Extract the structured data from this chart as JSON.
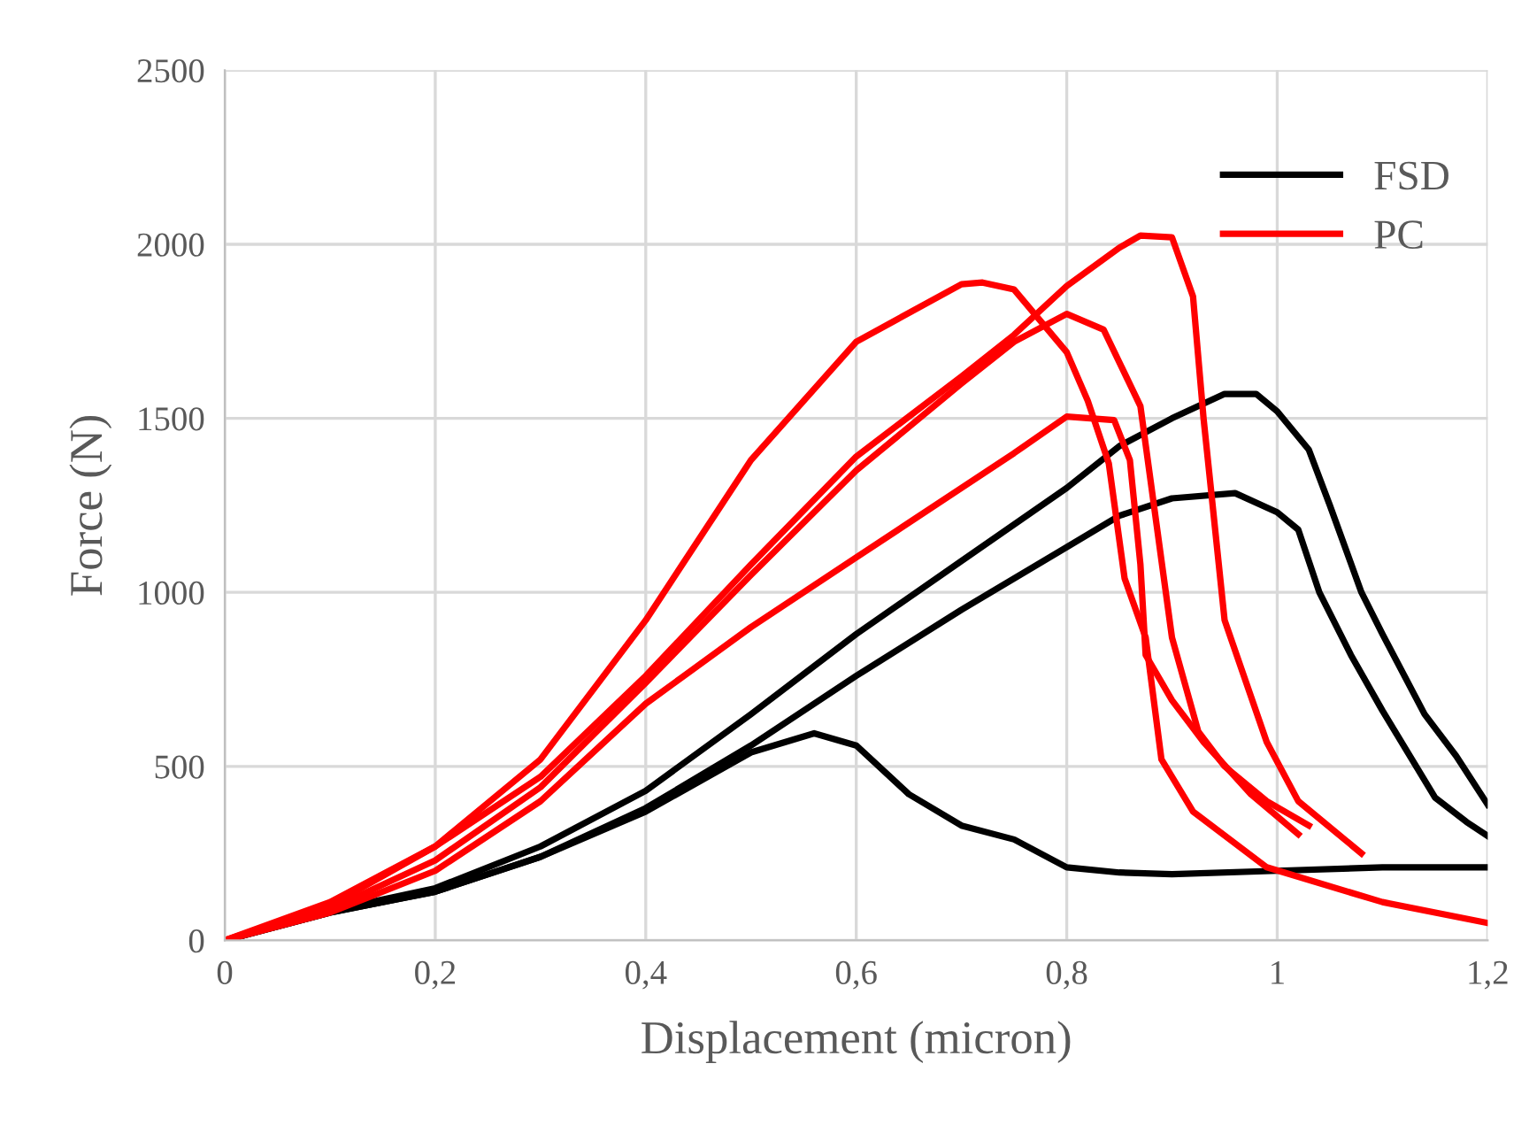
{
  "chart_data": {
    "type": "line",
    "xlabel": "Displacement (micron)",
    "ylabel": "Force (N)",
    "xlim": [
      0,
      1.2
    ],
    "xticks": [
      0,
      {
        "value": 0.2,
        "label": "0,2"
      },
      {
        "value": 0.4,
        "label": "0,4"
      },
      {
        "value": 0.6,
        "label": "0,6"
      },
      {
        "value": 0.8,
        "label": "0,8"
      },
      1,
      {
        "value": 1.2,
        "label": "1,2"
      }
    ],
    "ylim": [
      0,
      2500
    ],
    "yticks": [
      0,
      500,
      1000,
      1500,
      2000,
      2500
    ],
    "grid": true,
    "legend": "top right",
    "marker": "none",
    "line_style": "solid",
    "series": [
      {
        "name": "FSD",
        "color": "#000000",
        "x": [
          0,
          0.1,
          0.2,
          0.3,
          0.4,
          0.5,
          0.56,
          0.6,
          0.65,
          0.7,
          0.75,
          0.8,
          0.85,
          0.9,
          1.0,
          1.1,
          1.2
        ],
        "values": [
          0,
          80,
          140,
          240,
          370,
          540,
          595,
          560,
          420,
          330,
          290,
          210,
          195,
          190,
          200,
          210,
          210
        ]
      },
      {
        "color": "#000000",
        "x": [
          0,
          0.1,
          0.2,
          0.3,
          0.4,
          0.5,
          0.6,
          0.7,
          0.8,
          0.85,
          0.9,
          0.95,
          0.98,
          1.0,
          1.03,
          1.05,
          1.08,
          1.1,
          1.14,
          1.17,
          1.2
        ],
        "values": [
          0,
          85,
          150,
          270,
          430,
          650,
          880,
          1090,
          1300,
          1420,
          1500,
          1570,
          1570,
          1520,
          1410,
          1250,
          1000,
          880,
          650,
          530,
          390
        ]
      },
      {
        "color": "#000000",
        "x": [
          0,
          0.1,
          0.2,
          0.3,
          0.4,
          0.5,
          0.6,
          0.7,
          0.8,
          0.85,
          0.9,
          0.96,
          1.0,
          1.02,
          1.04,
          1.07,
          1.1,
          1.15,
          1.18,
          1.2
        ],
        "values": [
          0,
          80,
          140,
          240,
          380,
          560,
          760,
          950,
          1130,
          1220,
          1270,
          1285,
          1230,
          1180,
          1000,
          820,
          660,
          410,
          340,
          300
        ]
      },
      {
        "name": "PC",
        "color": "#ff0000",
        "x": [
          0,
          0.1,
          0.2,
          0.3,
          0.4,
          0.5,
          0.6,
          0.7,
          0.72,
          0.75,
          0.8,
          0.82,
          0.84,
          0.855,
          0.875,
          0.89,
          0.92,
          0.99,
          1.1,
          1.2
        ],
        "values": [
          0,
          110,
          270,
          520,
          920,
          1380,
          1720,
          1885,
          1890,
          1870,
          1690,
          1550,
          1370,
          1040,
          870,
          520,
          370,
          210,
          110,
          50
        ]
      },
      {
        "color": "#ff0000",
        "x": [
          0,
          0.1,
          0.2,
          0.3,
          0.4,
          0.5,
          0.6,
          0.7,
          0.75,
          0.8,
          0.85,
          0.87,
          0.9,
          0.92,
          0.93,
          0.95,
          0.99,
          1.02,
          1.08
        ],
        "values": [
          0,
          100,
          270,
          470,
          760,
          1080,
          1390,
          1620,
          1740,
          1880,
          1990,
          2025,
          2020,
          1850,
          1500,
          920,
          570,
          400,
          250
        ]
      },
      {
        "color": "#ff0000",
        "x": [
          0,
          0.1,
          0.2,
          0.3,
          0.4,
          0.5,
          0.6,
          0.7,
          0.75,
          0.8,
          0.835,
          0.87,
          0.9,
          0.925,
          0.95,
          0.99,
          1.03
        ],
        "values": [
          0,
          90,
          230,
          440,
          740,
          1050,
          1350,
          1600,
          1720,
          1800,
          1755,
          1535,
          870,
          600,
          500,
          400,
          330
        ]
      },
      {
        "color": "#ff0000",
        "x": [
          0,
          0.1,
          0.2,
          0.3,
          0.4,
          0.5,
          0.6,
          0.7,
          0.75,
          0.8,
          0.845,
          0.86,
          0.87,
          0.875,
          0.9,
          0.93,
          0.975,
          1.02
        ],
        "values": [
          0,
          80,
          200,
          400,
          680,
          900,
          1100,
          1300,
          1400,
          1505,
          1495,
          1380,
          1080,
          820,
          690,
          570,
          420,
          305
        ]
      }
    ]
  }
}
